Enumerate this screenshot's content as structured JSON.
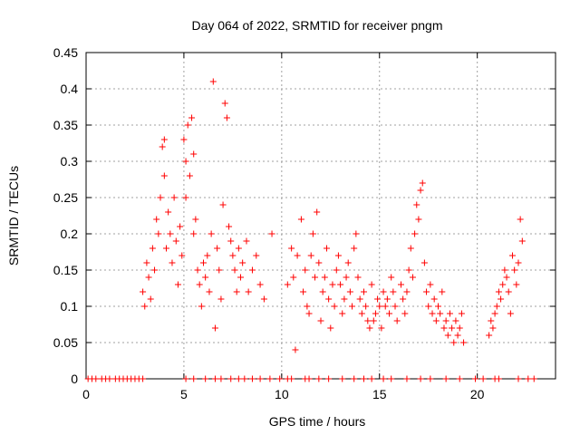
{
  "chart_data": {
    "type": "scatter",
    "title": "Day 064 of 2022, SRMTID for receiver pngm",
    "xlabel": "GPS time / hours",
    "ylabel": "SRMTID / TECUs",
    "xlim": [
      0,
      24
    ],
    "ylim": [
      0,
      0.45
    ],
    "x_ticks": [
      0,
      5,
      10,
      15,
      20
    ],
    "y_ticks": [
      0,
      0.05,
      0.1,
      0.15,
      0.2,
      0.25,
      0.3,
      0.35,
      0.4,
      0.45
    ],
    "grid": true,
    "marker": "+",
    "color": "#ff0000",
    "series": [
      {
        "name": "SRMTID",
        "points": [
          [
            2.9,
            0.12
          ],
          [
            3.0,
            0.1
          ],
          [
            3.1,
            0.16
          ],
          [
            3.2,
            0.14
          ],
          [
            3.3,
            0.11
          ],
          [
            3.4,
            0.18
          ],
          [
            3.5,
            0.15
          ],
          [
            3.6,
            0.22
          ],
          [
            3.7,
            0.2
          ],
          [
            3.8,
            0.25
          ],
          [
            3.9,
            0.32
          ],
          [
            4.0,
            0.33
          ],
          [
            4.0,
            0.28
          ],
          [
            4.1,
            0.18
          ],
          [
            4.2,
            0.23
          ],
          [
            4.3,
            0.2
          ],
          [
            4.4,
            0.16
          ],
          [
            4.5,
            0.25
          ],
          [
            4.6,
            0.19
          ],
          [
            4.7,
            0.13
          ],
          [
            4.8,
            0.21
          ],
          [
            4.9,
            0.17
          ],
          [
            5.0,
            0.33
          ],
          [
            5.1,
            0.25
          ],
          [
            5.1,
            0.3
          ],
          [
            5.2,
            0.35
          ],
          [
            5.3,
            0.28
          ],
          [
            5.4,
            0.36
          ],
          [
            5.5,
            0.31
          ],
          [
            5.5,
            0.2
          ],
          [
            5.6,
            0.22
          ],
          [
            5.7,
            0.15
          ],
          [
            5.8,
            0.13
          ],
          [
            5.9,
            0.1
          ],
          [
            6.0,
            0.16
          ],
          [
            6.1,
            0.14
          ],
          [
            6.2,
            0.17
          ],
          [
            6.3,
            0.12
          ],
          [
            6.4,
            0.2
          ],
          [
            6.5,
            0.41
          ],
          [
            6.6,
            0.07
          ],
          [
            6.7,
            0.18
          ],
          [
            6.8,
            0.15
          ],
          [
            6.9,
            0.11
          ],
          [
            7.0,
            0.24
          ],
          [
            7.1,
            0.38
          ],
          [
            7.2,
            0.36
          ],
          [
            7.3,
            0.21
          ],
          [
            7.4,
            0.19
          ],
          [
            7.5,
            0.17
          ],
          [
            7.6,
            0.15
          ],
          [
            7.7,
            0.12
          ],
          [
            7.8,
            0.18
          ],
          [
            7.9,
            0.14
          ],
          [
            8.0,
            0.16
          ],
          [
            8.2,
            0.19
          ],
          [
            8.3,
            0.12
          ],
          [
            8.5,
            0.15
          ],
          [
            8.7,
            0.17
          ],
          [
            8.9,
            0.13
          ],
          [
            9.1,
            0.11
          ],
          [
            9.5,
            0.2
          ],
          [
            10.3,
            0.13
          ],
          [
            10.5,
            0.18
          ],
          [
            10.6,
            0.14
          ],
          [
            10.7,
            0.04
          ],
          [
            10.8,
            0.17
          ],
          [
            11.0,
            0.22
          ],
          [
            11.1,
            0.12
          ],
          [
            11.2,
            0.15
          ],
          [
            11.3,
            0.1
          ],
          [
            11.4,
            0.09
          ],
          [
            11.5,
            0.17
          ],
          [
            11.6,
            0.2
          ],
          [
            11.7,
            0.14
          ],
          [
            11.8,
            0.23
          ],
          [
            11.9,
            0.16
          ],
          [
            12.0,
            0.08
          ],
          [
            12.1,
            0.12
          ],
          [
            12.2,
            0.14
          ],
          [
            12.3,
            0.18
          ],
          [
            12.4,
            0.11
          ],
          [
            12.5,
            0.07
          ],
          [
            12.6,
            0.13
          ],
          [
            12.7,
            0.1
          ],
          [
            12.8,
            0.15
          ],
          [
            12.9,
            0.17
          ],
          [
            13.0,
            0.13
          ],
          [
            13.1,
            0.09
          ],
          [
            13.2,
            0.11
          ],
          [
            13.3,
            0.14
          ],
          [
            13.4,
            0.16
          ],
          [
            13.5,
            0.12
          ],
          [
            13.6,
            0.1
          ],
          [
            13.7,
            0.18
          ],
          [
            13.8,
            0.2
          ],
          [
            13.9,
            0.14
          ],
          [
            14.0,
            0.11
          ],
          [
            14.1,
            0.09
          ],
          [
            14.2,
            0.12
          ],
          [
            14.3,
            0.1
          ],
          [
            14.4,
            0.08
          ],
          [
            14.5,
            0.07
          ],
          [
            14.6,
            0.13
          ],
          [
            14.7,
            0.08
          ],
          [
            14.8,
            0.09
          ],
          [
            14.9,
            0.11
          ],
          [
            15.0,
            0.1
          ],
          [
            15.1,
            0.07
          ],
          [
            15.2,
            0.12
          ],
          [
            15.3,
            0.1
          ],
          [
            15.4,
            0.11
          ],
          [
            15.5,
            0.09
          ],
          [
            15.6,
            0.14
          ],
          [
            15.7,
            0.12
          ],
          [
            15.8,
            0.1
          ],
          [
            15.9,
            0.08
          ],
          [
            16.1,
            0.13
          ],
          [
            16.2,
            0.11
          ],
          [
            16.3,
            0.09
          ],
          [
            16.4,
            0.12
          ],
          [
            16.5,
            0.15
          ],
          [
            16.6,
            0.18
          ],
          [
            16.7,
            0.14
          ],
          [
            16.8,
            0.2
          ],
          [
            16.9,
            0.24
          ],
          [
            17.0,
            0.22
          ],
          [
            17.1,
            0.26
          ],
          [
            17.2,
            0.27
          ],
          [
            17.3,
            0.16
          ],
          [
            17.4,
            0.12
          ],
          [
            17.5,
            0.1
          ],
          [
            17.6,
            0.13
          ],
          [
            17.7,
            0.09
          ],
          [
            17.8,
            0.11
          ],
          [
            17.9,
            0.08
          ],
          [
            18.0,
            0.1
          ],
          [
            18.1,
            0.09
          ],
          [
            18.2,
            0.12
          ],
          [
            18.3,
            0.07
          ],
          [
            18.4,
            0.08
          ],
          [
            18.5,
            0.06
          ],
          [
            18.6,
            0.09
          ],
          [
            18.7,
            0.07
          ],
          [
            18.8,
            0.05
          ],
          [
            18.9,
            0.08
          ],
          [
            19.0,
            0.06
          ],
          [
            19.1,
            0.07
          ],
          [
            19.2,
            0.09
          ],
          [
            19.3,
            0.05
          ],
          [
            20.6,
            0.06
          ],
          [
            20.7,
            0.08
          ],
          [
            20.8,
            0.07
          ],
          [
            20.9,
            0.09
          ],
          [
            21.0,
            0.1
          ],
          [
            21.1,
            0.12
          ],
          [
            21.2,
            0.11
          ],
          [
            21.3,
            0.13
          ],
          [
            21.4,
            0.15
          ],
          [
            21.5,
            0.14
          ],
          [
            21.6,
            0.12
          ],
          [
            21.7,
            0.09
          ],
          [
            21.8,
            0.17
          ],
          [
            21.9,
            0.15
          ],
          [
            22.0,
            0.13
          ],
          [
            22.1,
            0.16
          ],
          [
            22.2,
            0.22
          ],
          [
            22.3,
            0.19
          ]
        ]
      }
    ],
    "zero_values_x": [
      0.1,
      0.3,
      0.5,
      0.8,
      1.0,
      1.2,
      1.5,
      1.7,
      1.9,
      2.1,
      2.3,
      2.5,
      2.7,
      2.9,
      5.1,
      5.5,
      6.1,
      6.6,
      6.9,
      7.4,
      7.8,
      8.1,
      8.5,
      8.9,
      9.4,
      9.9,
      10.3,
      10.5,
      11.2,
      11.4,
      11.9,
      12.4,
      13.1,
      13.7,
      14.2,
      14.6,
      15.2,
      15.6,
      16.4,
      17.1,
      17.6,
      18.4,
      19.1,
      19.9,
      20.3,
      20.9,
      21.1,
      22.1,
      22.6,
      22.9
    ]
  }
}
